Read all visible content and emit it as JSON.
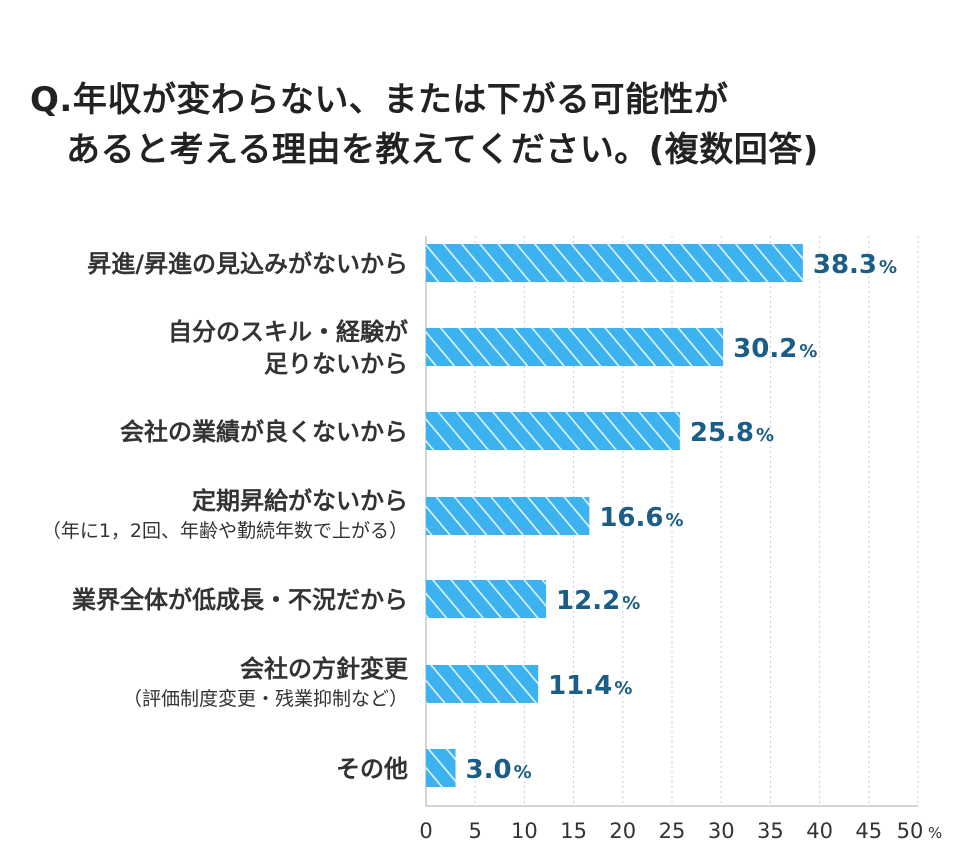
{
  "title": {
    "line1": "Q.年収が変わらない、または下がる可能性が",
    "line2": "あると考える理由を教えてください。(複数回答)"
  },
  "colors": {
    "bar": "#3db2f0",
    "bar_stripe": "#ffffff",
    "value_text": "#1a5d86",
    "label_text": "#333333",
    "grid": "#cccccc"
  },
  "chart_data": {
    "type": "bar",
    "orientation": "horizontal",
    "categories": [
      {
        "lines": [
          "昇進/昇進の見込みがないから"
        ],
        "sub": ""
      },
      {
        "lines": [
          "自分のスキル・経験が",
          "足りないから"
        ],
        "sub": ""
      },
      {
        "lines": [
          "会社の業績が良くないから"
        ],
        "sub": ""
      },
      {
        "lines": [
          "定期昇給がないから"
        ],
        "sub": "（年に1，2回、年齢や勤続年数で上がる）"
      },
      {
        "lines": [
          "業界全体が低成長・不況だから"
        ],
        "sub": ""
      },
      {
        "lines": [
          "会社の方針変更"
        ],
        "sub": "（評価制度変更・残業抑制など）"
      },
      {
        "lines": [
          "その他"
        ],
        "sub": ""
      }
    ],
    "values": [
      38.3,
      30.2,
      25.8,
      16.6,
      12.2,
      11.4,
      3.0
    ],
    "value_labels": [
      "38.3",
      "30.2",
      "25.8",
      "16.6",
      "12.2",
      "11.4",
      "3.0"
    ],
    "value_unit": "%",
    "xlim": [
      0,
      50
    ],
    "xticks": [
      "0",
      "5",
      "10",
      "15",
      "20",
      "25",
      "30",
      "35",
      "40",
      "45",
      "50"
    ],
    "xtick_unit": "%",
    "grid": true,
    "legend": "none"
  }
}
